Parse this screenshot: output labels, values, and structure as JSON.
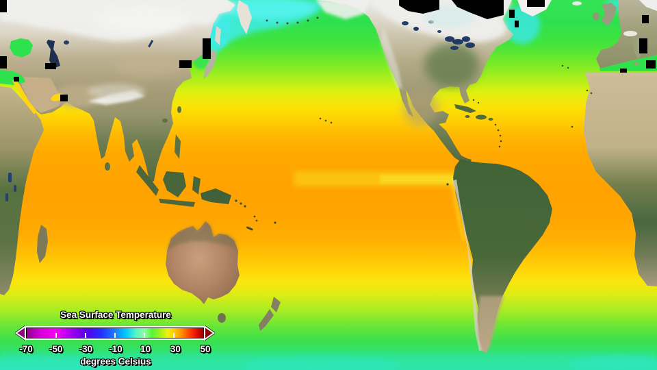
{
  "app": {
    "description": "Global satellite map of sea surface temperature over a world basemap (Pacific-centered)"
  },
  "legend": {
    "title": "Sea Surface Temperature",
    "caption": "degrees Celsius",
    "range": {
      "min": -70,
      "max": 50
    },
    "tick_labels": [
      "-70",
      "-50",
      "-30",
      "-10",
      "10",
      "30",
      "50"
    ],
    "tick_values": [
      -70,
      -50,
      -30,
      -10,
      10,
      30,
      50
    ],
    "inner_tick_values": [
      -50,
      -30,
      -10,
      10,
      30
    ],
    "arrow_left_color": "#8a0080",
    "arrow_right_color": "#8b0000",
    "colorbar_stops": [
      {
        "pct": 0,
        "color": "#90008e"
      },
      {
        "pct": 8,
        "color": "#d800d8"
      },
      {
        "pct": 17,
        "color": "#f400f4"
      },
      {
        "pct": 25,
        "color": "#a500f0"
      },
      {
        "pct": 34,
        "color": "#5800e8"
      },
      {
        "pct": 42,
        "color": "#2430ff"
      },
      {
        "pct": 50,
        "color": "#1b7bff"
      },
      {
        "pct": 56,
        "color": "#00c8ff"
      },
      {
        "pct": 62,
        "color": "#55f6c4"
      },
      {
        "pct": 67,
        "color": "#8eff9e"
      },
      {
        "pct": 71,
        "color": "#54f436"
      },
      {
        "pct": 76,
        "color": "#aaf01c"
      },
      {
        "pct": 80,
        "color": "#f0f00e"
      },
      {
        "pct": 84,
        "color": "#ffc400"
      },
      {
        "pct": 88,
        "color": "#ff8c00"
      },
      {
        "pct": 92,
        "color": "#ff4400"
      },
      {
        "pct": 96,
        "color": "#e81000"
      },
      {
        "pct": 100,
        "color": "#9c0000"
      }
    ]
  },
  "map_colors": {
    "warm_tropics": "#ffa200",
    "temperate_yellow": "#f0e60a",
    "cool_green": "#2ee04e",
    "cold_cyan": "#40ecdf",
    "missing_data": "#000000"
  }
}
